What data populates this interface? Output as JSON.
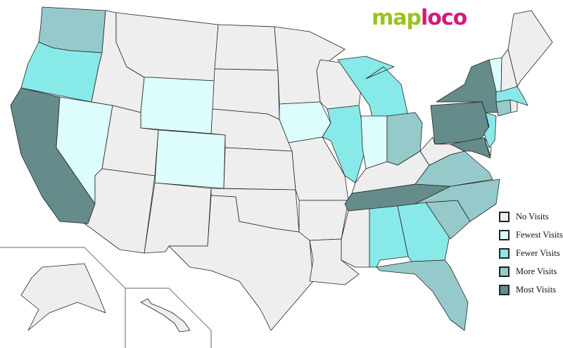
{
  "logo": {
    "part1": "map",
    "part2": "loco"
  },
  "colors": {
    "none": "#eeeeee",
    "fewest": "#ddfdfd",
    "fewer": "#88e9e9",
    "more": "#96caca",
    "most": "#658b8b"
  },
  "legend": [
    {
      "key": "none",
      "label": "No Visits"
    },
    {
      "key": "fewest",
      "label": "Fewest Visits"
    },
    {
      "key": "fewer",
      "label": "Fewer Visits"
    },
    {
      "key": "more",
      "label": "More Visits"
    },
    {
      "key": "most",
      "label": "Most Visits"
    }
  ],
  "states": {
    "WA": "more",
    "OR": "fewer",
    "CA": "most",
    "NV": "fewest",
    "ID": "none",
    "MT": "none",
    "WY": "fewest",
    "UT": "none",
    "AZ": "none",
    "CO": "fewest",
    "NM": "none",
    "ND": "none",
    "SD": "none",
    "NE": "none",
    "KS": "none",
    "OK": "none",
    "TX": "none",
    "MN": "none",
    "IA": "fewest",
    "MO": "none",
    "AR": "none",
    "LA": "none",
    "WI": "none",
    "IL": "fewer",
    "MI": "fewer",
    "IN": "fewest",
    "OH": "more",
    "KY": "none",
    "TN": "most",
    "MS": "none",
    "AL": "fewer",
    "GA": "fewer",
    "FL": "more",
    "SC": "more",
    "NC": "more",
    "VA": "more",
    "WV": "none",
    "PA": "most",
    "NY": "most",
    "MD": "most",
    "DE": "fewest",
    "NJ": "fewer",
    "CT": "more",
    "RI": "none",
    "MA": "fewer",
    "VT": "fewest",
    "NH": "none",
    "ME": "none",
    "AK": "none",
    "HI": "none"
  }
}
